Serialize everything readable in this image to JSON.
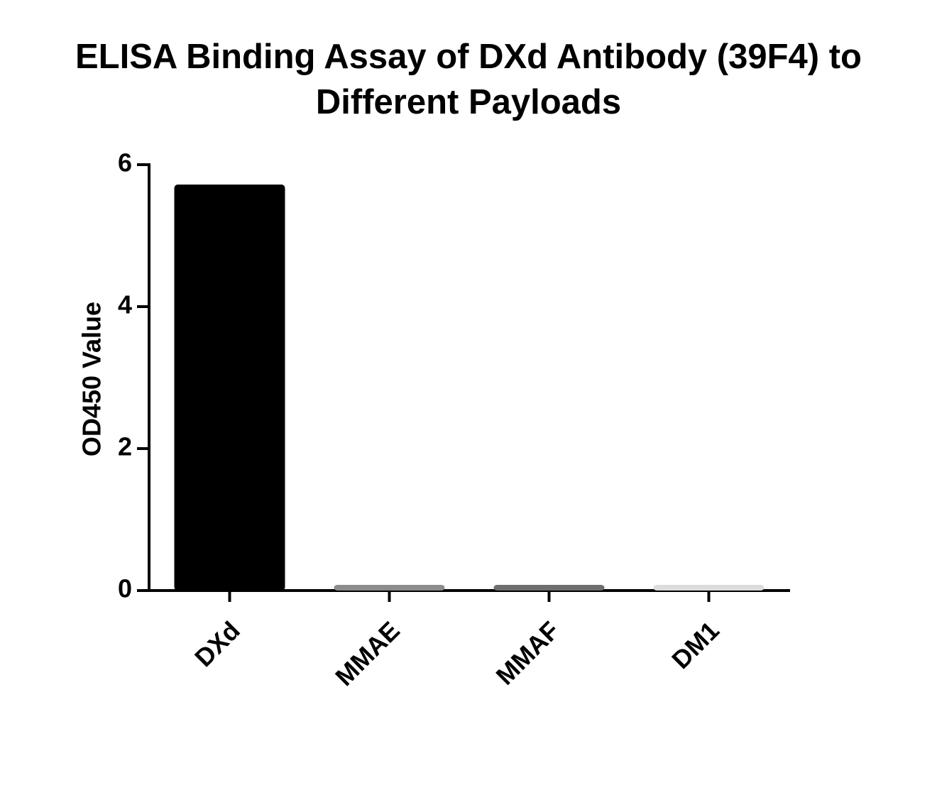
{
  "chart_data": {
    "type": "bar",
    "title": "ELISA Binding Assay of DXd Antibody (39F4) to Different Payloads",
    "y_label": "OD450 Value",
    "categories": [
      "DXd",
      "MMAE",
      "MMAF",
      "DM1"
    ],
    "values": [
      5.7,
      0.06,
      0.06,
      0.06
    ],
    "colors": [
      "#000000",
      "#8c8c8c",
      "#6e6e6e",
      "#dcdcdc"
    ],
    "ylim": [
      0,
      6
    ],
    "yticks": [
      0,
      2,
      4,
      6
    ],
    "grid": false
  }
}
